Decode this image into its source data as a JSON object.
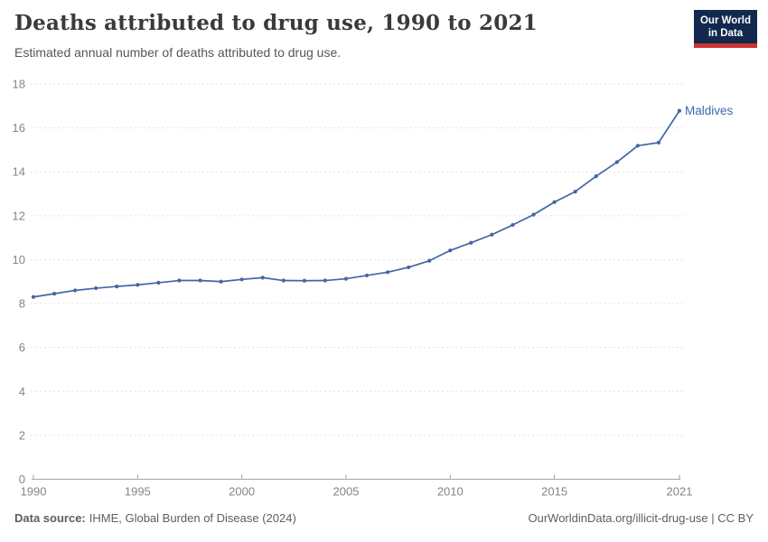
{
  "header": {
    "title": "Deaths attributed to drug use, 1990 to 2021",
    "subtitle": "Estimated annual number of deaths attributed to drug use.",
    "logo": {
      "line1": "Our World",
      "line2": "in Data"
    }
  },
  "chart_data": {
    "type": "line",
    "title": "Deaths attributed to drug use, 1990 to 2021",
    "subtitle": "Estimated annual number of deaths attributed to drug use.",
    "xlabel": "",
    "ylabel": "",
    "xlim": [
      1990,
      2021
    ],
    "ylim": [
      0,
      18
    ],
    "y_ticks": [
      0,
      2,
      4,
      6,
      8,
      10,
      12,
      14,
      16,
      18
    ],
    "x_ticks": [
      1990,
      1995,
      2000,
      2005,
      2010,
      2015,
      2021
    ],
    "x_tick_labels": [
      "1990",
      "1995",
      "2000",
      "2005",
      "2010",
      "2015",
      "2021"
    ],
    "grid": "horizontal-dashed",
    "legend_position": "end-of-line-label",
    "series": [
      {
        "name": "Maldives",
        "color": "#4266a5",
        "x": [
          1990,
          1991,
          1992,
          1993,
          1994,
          1995,
          1996,
          1997,
          1998,
          1999,
          2000,
          2001,
          2002,
          2003,
          2004,
          2005,
          2006,
          2007,
          2008,
          2009,
          2010,
          2011,
          2012,
          2013,
          2014,
          2015,
          2016,
          2017,
          2018,
          2019,
          2020,
          2021
        ],
        "values": [
          8.3,
          8.45,
          8.6,
          8.7,
          8.78,
          8.85,
          8.95,
          9.05,
          9.05,
          9.0,
          9.1,
          9.18,
          9.05,
          9.04,
          9.05,
          9.13,
          9.28,
          9.43,
          9.65,
          9.95,
          10.42,
          10.77,
          11.14,
          11.58,
          12.05,
          12.62,
          13.1,
          13.8,
          14.44,
          15.19,
          15.33,
          16.78
        ]
      }
    ]
  },
  "footer": {
    "datasource_label": "Data source:",
    "datasource_value": "IHME, Global Burden of Disease (2024)",
    "credit": "OurWorldinData.org/illicit-drug-use | CC BY"
  },
  "colors": {
    "line": "#4266a5",
    "series_label": "#3c69ac",
    "grid": "#e2e2e2",
    "axis": "#a3a3a3",
    "tick_label": "#858585",
    "title": "#3a3a3a",
    "subtitle": "#565656",
    "footer_text": "#5e5e5e",
    "logo_bg": "#12294d",
    "logo_bar": "#ca3533"
  }
}
